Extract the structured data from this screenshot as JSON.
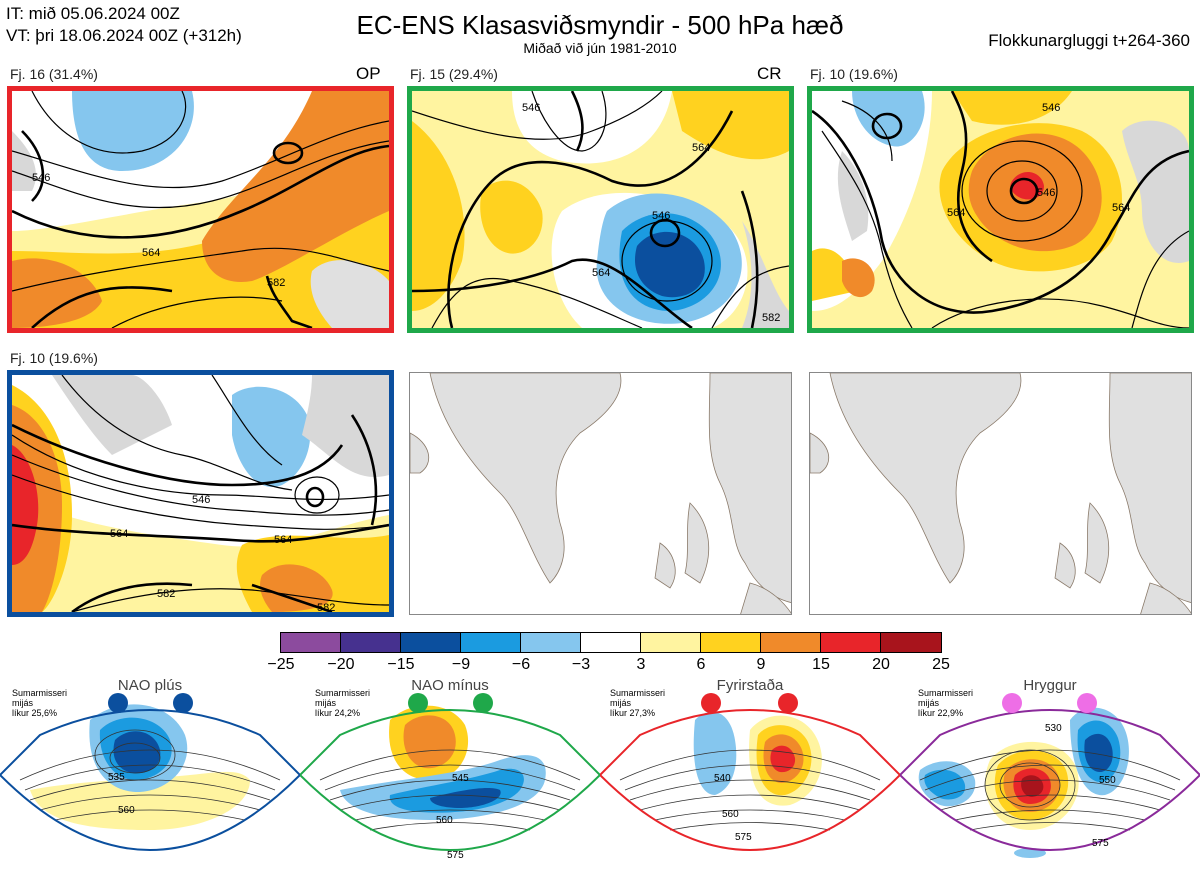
{
  "header": {
    "init_line": "IT: mið 05.06.2024 00Z",
    "valid_line": "VT: þri 18.06.2024 00Z  (+312h)",
    "title": "EC-ENS Klasasviðsmyndir - 500 hPa hæð",
    "subtitle": "Miðað við jún 1981-2010",
    "window": "Flokkunargluggi t+264-360"
  },
  "panels": [
    {
      "label": "Fj. 16 (31.4%)",
      "tag": "OP",
      "border": "#e8252a",
      "contours": [
        "546",
        "564",
        "582"
      ]
    },
    {
      "label": "Fj. 15 (29.4%)",
      "tag": "CR",
      "border": "#1fa84a",
      "contours": [
        "546",
        "564",
        "564",
        "546",
        "582"
      ]
    },
    {
      "label": "Fj. 10 (19.6%)",
      "tag": "",
      "border": "#1fa84a",
      "contours": [
        "546",
        "546",
        "564",
        "564"
      ]
    },
    {
      "label": "Fj. 10 (19.6%)",
      "tag": "",
      "border": "#0b4f9e",
      "contours": [
        "546",
        "564",
        "564",
        "582",
        "582"
      ]
    }
  ],
  "colorbar": {
    "colors": [
      "#8c4b9e",
      "#46318f",
      "#0b4f9e",
      "#1b9be0",
      "#85c6ee",
      "#ffffff",
      "#fff4a0",
      "#ffd21f",
      "#f08a2a",
      "#e8252a",
      "#a8141c"
    ],
    "ticks": [
      "−25",
      "−20",
      "−15",
      "−9",
      "−6",
      "−3",
      "3",
      "6",
      "9",
      "15",
      "20",
      "25"
    ]
  },
  "regimes": [
    {
      "name": "NAO plús",
      "note": [
        "Sumarmisseri",
        "mijás",
        "líkur 25,6%"
      ],
      "color": "#0b4f9e",
      "contours": [
        "535",
        "560"
      ]
    },
    {
      "name": "NAO mínus",
      "note": [
        "Sumarmisseri",
        "mijás",
        "líkur 24,2%"
      ],
      "color": "#1fa84a",
      "contours": [
        "545",
        "560",
        "575"
      ]
    },
    {
      "name": "Fyrirstaða",
      "note": [
        "Sumarmisseri",
        "mijás",
        "líkur 27,3%"
      ],
      "color": "#e8252a",
      "contours": [
        "540",
        "560",
        "575"
      ]
    },
    {
      "name": "Hryggur",
      "note": [
        "Sumarmisseri",
        "mijás",
        "líkur 22,9%"
      ],
      "color": "#ee6ee6",
      "contours": [
        "530",
        "550",
        "575"
      ]
    }
  ]
}
